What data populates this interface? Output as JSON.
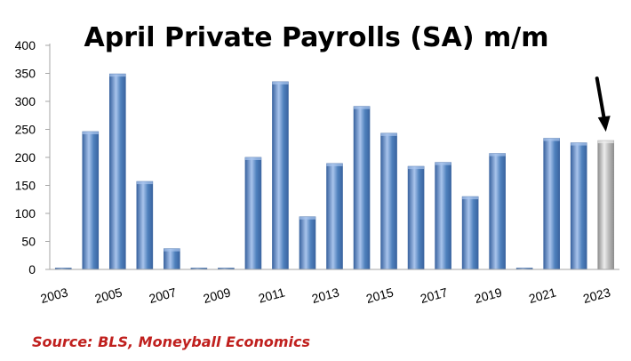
{
  "chart_data": {
    "type": "bar",
    "title": "April Private Payrolls (SA) m/m",
    "xlabel": "",
    "ylabel": "",
    "ylim": [
      0,
      400
    ],
    "yticks": [
      0,
      50,
      100,
      150,
      200,
      250,
      300,
      350,
      400
    ],
    "grid": false,
    "legend": "none",
    "categories": [
      "2003",
      "2004",
      "2005",
      "2006",
      "2007",
      "2008",
      "2009",
      "2010",
      "2011",
      "2012",
      "2013",
      "2014",
      "2015",
      "2016",
      "2017",
      "2018",
      "2019",
      "2020",
      "2021",
      "2022",
      "2023"
    ],
    "tick_labels": [
      "2003",
      "",
      "2005",
      "",
      "2007",
      "",
      "2009",
      "",
      "2011",
      "",
      "2013",
      "",
      "2015",
      "",
      "2017",
      "",
      "2019",
      "",
      "2021",
      "",
      "2023"
    ],
    "values": [
      0,
      246,
      349,
      157,
      37,
      0,
      0,
      200,
      335,
      94,
      189,
      291,
      243,
      184,
      191,
      130,
      207,
      0,
      234,
      226,
      230
    ],
    "highlight_category": "2023",
    "colors": {
      "bar": "#4f81bd",
      "bar_light": "#a9c4ec",
      "bar_dark": "#3a64a0",
      "highlight": "#b8b8b8",
      "highlight_light": "#ececec",
      "highlight_dark": "#8e8e8e",
      "axis": "#a6a6a6",
      "arrow": "#000000"
    },
    "annotation": {
      "type": "arrow",
      "target": "2023"
    }
  },
  "source": "Source: BLS, Moneyball Economics"
}
